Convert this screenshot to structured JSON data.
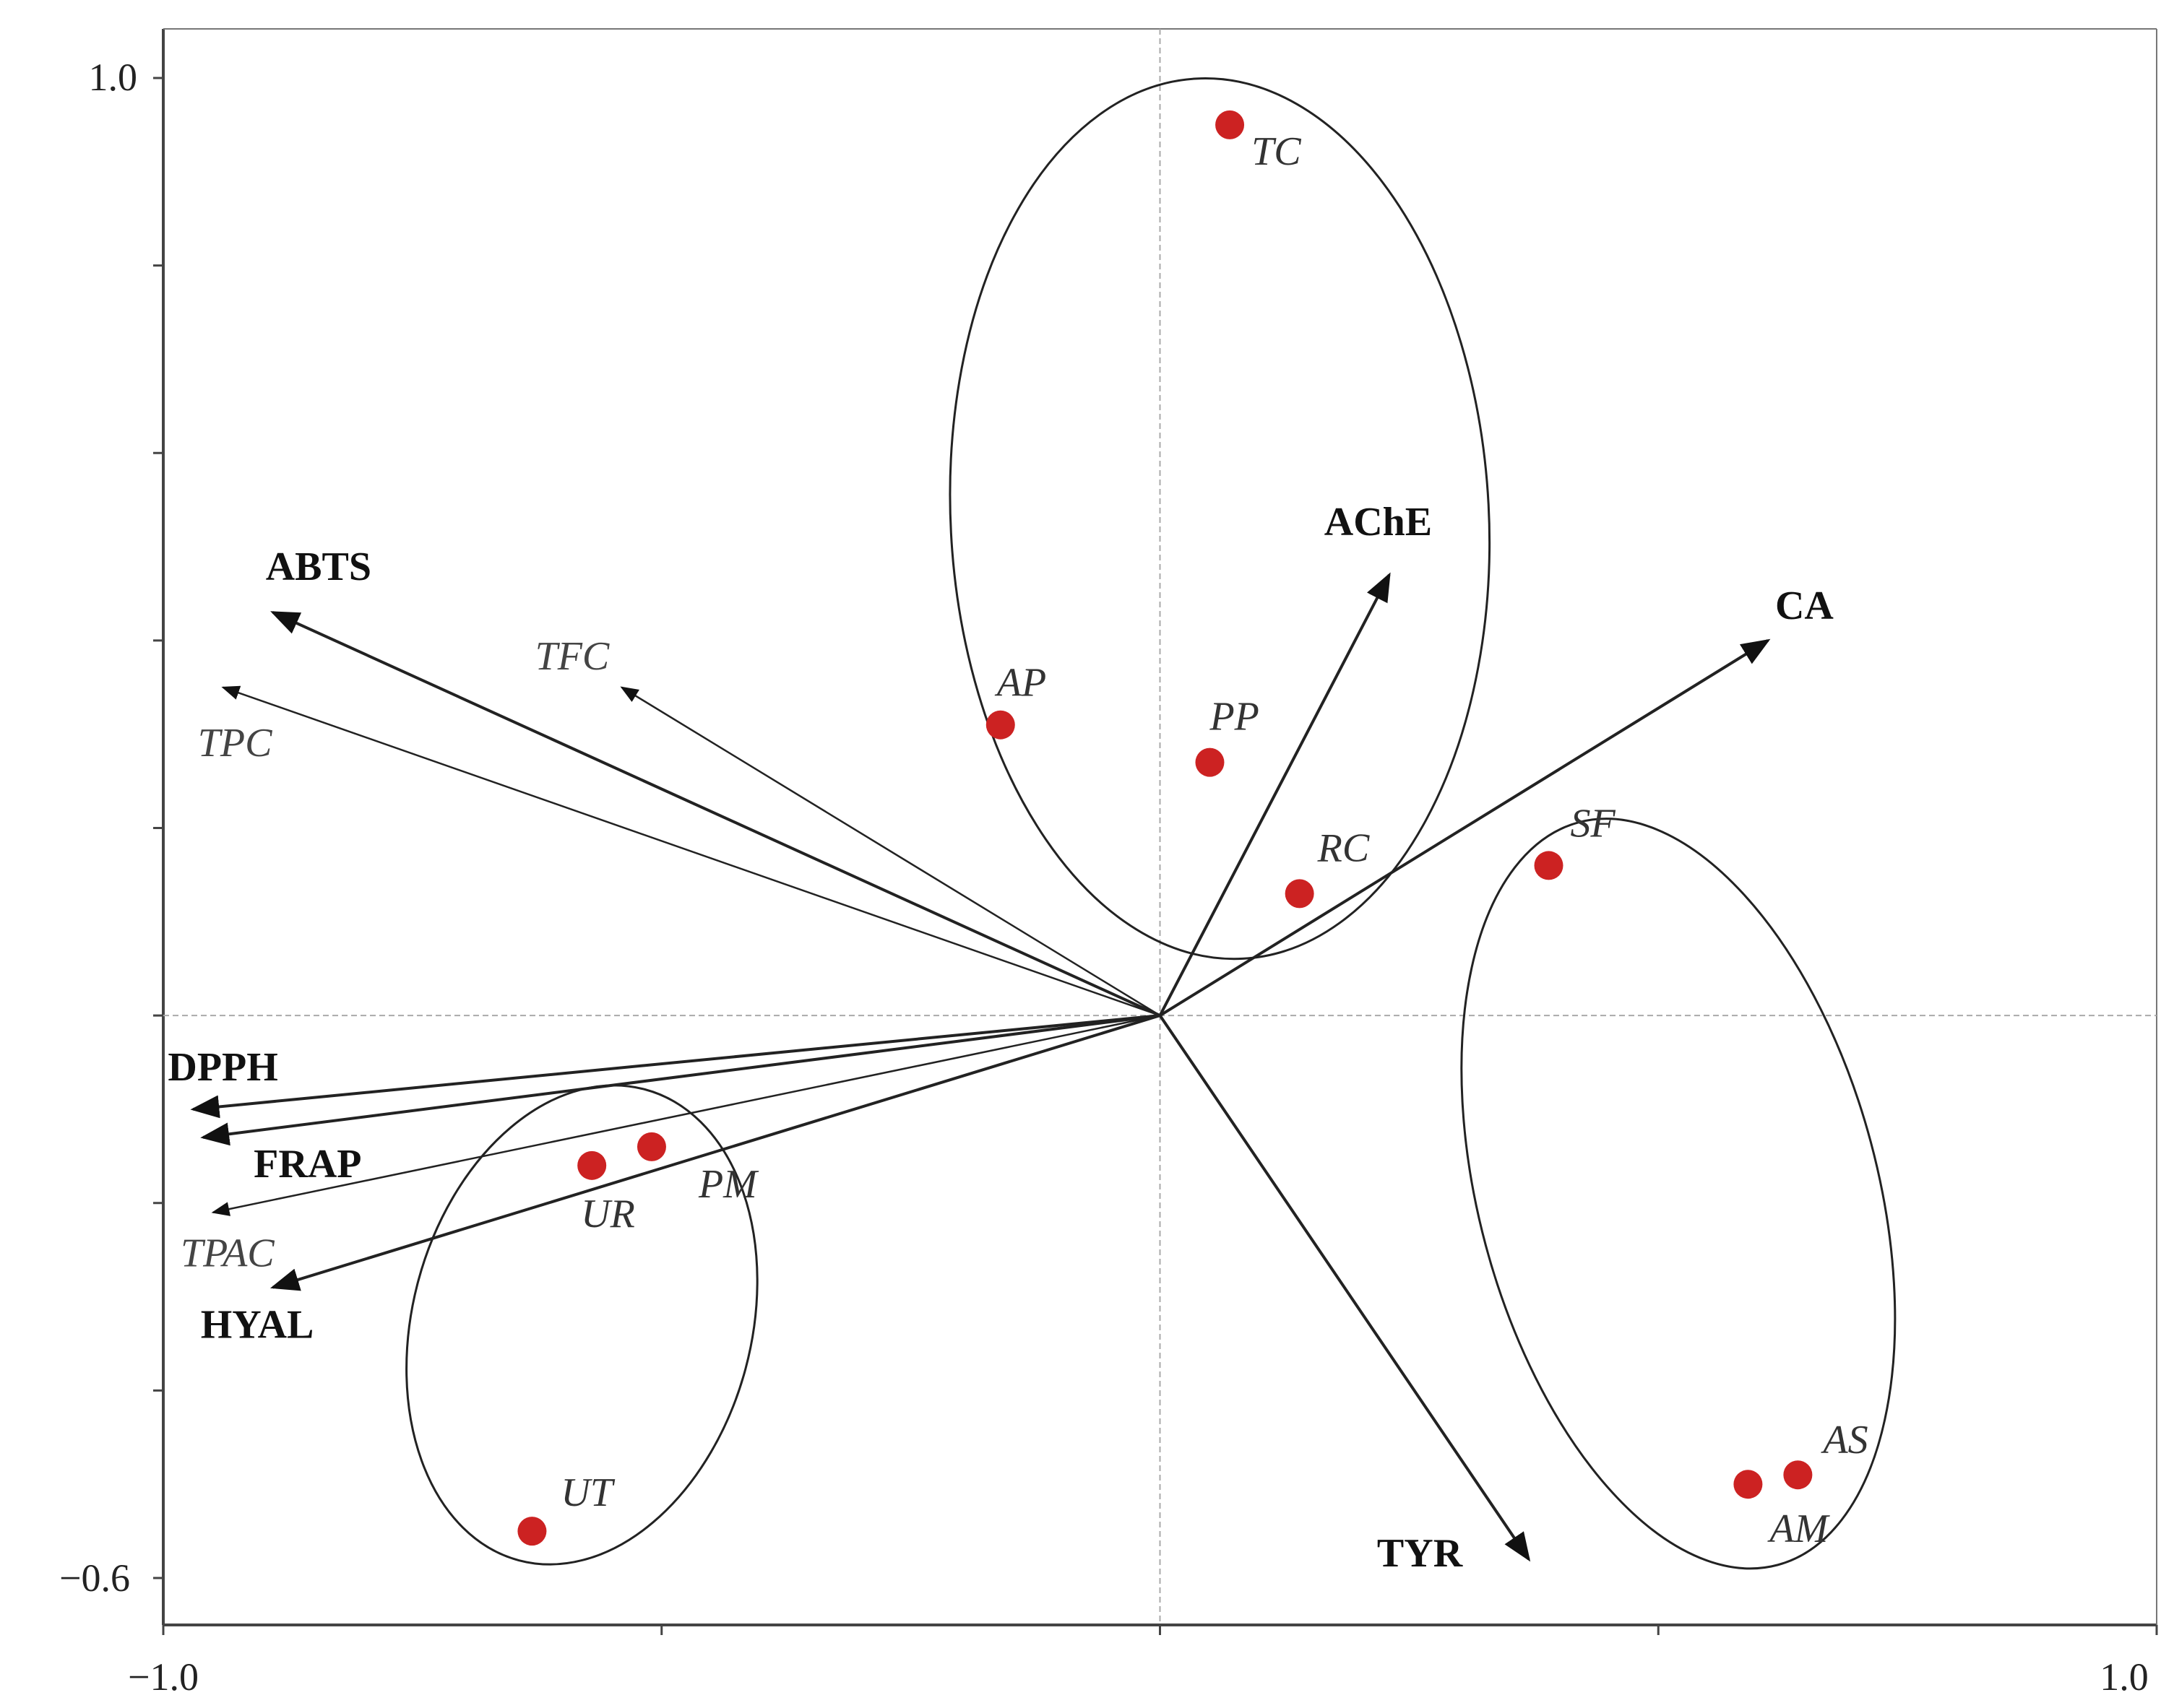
{
  "chart_data": {
    "type": "scatter",
    "title": "",
    "xlabel": "",
    "ylabel": "",
    "xlim": [
      -1.0,
      1.0
    ],
    "ylim": [
      -0.6,
      1.0
    ],
    "grid": false,
    "reference_lines": {
      "x": 0,
      "y": 0
    },
    "tick_labels": {
      "x_min": "−1.0",
      "x_max": "1.0",
      "y_min": "−0.6",
      "y_max": "1.0"
    },
    "loadings": [
      {
        "name": "ABTS",
        "x": -0.89,
        "y": 0.43,
        "style": "bold"
      },
      {
        "name": "TFC",
        "x": -0.54,
        "y": 0.35,
        "style": "italic"
      },
      {
        "name": "TPC",
        "x": -0.94,
        "y": 0.35,
        "style": "italic"
      },
      {
        "name": "AChE",
        "x": 0.23,
        "y": 0.47,
        "style": "bold"
      },
      {
        "name": "CA",
        "x": 0.61,
        "y": 0.4,
        "style": "bold"
      },
      {
        "name": "DPPH",
        "x": -0.97,
        "y": -0.1,
        "style": "bold"
      },
      {
        "name": "FRAP",
        "x": -0.96,
        "y": -0.13,
        "style": "bold"
      },
      {
        "name": "TPAC",
        "x": -0.95,
        "y": -0.21,
        "style": "italic"
      },
      {
        "name": "HYAL",
        "x": -0.89,
        "y": -0.29,
        "style": "bold"
      },
      {
        "name": "TYR",
        "x": 0.37,
        "y": -0.58,
        "style": "bold"
      }
    ],
    "scores": [
      {
        "name": "TC",
        "x": 0.07,
        "y": 0.95
      },
      {
        "name": "AP",
        "x": -0.16,
        "y": 0.31
      },
      {
        "name": "PP",
        "x": 0.05,
        "y": 0.27
      },
      {
        "name": "RC",
        "x": 0.14,
        "y": 0.13
      },
      {
        "name": "SF",
        "x": 0.39,
        "y": 0.16
      },
      {
        "name": "AS",
        "x": 0.64,
        "y": -0.49
      },
      {
        "name": "AM",
        "x": 0.59,
        "y": -0.5
      },
      {
        "name": "UR",
        "x": -0.57,
        "y": -0.16
      },
      {
        "name": "PM",
        "x": -0.51,
        "y": -0.14
      },
      {
        "name": "UT",
        "x": -0.63,
        "y": -0.55
      }
    ],
    "groups": [
      {
        "members": [
          "TC",
          "AP",
          "PP",
          "RC"
        ],
        "cx": 0.06,
        "cy": 0.53,
        "rx": 0.27,
        "ry": 0.47,
        "rotate": -3
      },
      {
        "members": [
          "SF",
          "AS",
          "AM"
        ],
        "cx": 0.52,
        "cy": -0.19,
        "rx": 0.2,
        "ry": 0.41,
        "rotate": -15
      },
      {
        "members": [
          "UR",
          "PM",
          "UT"
        ],
        "cx": -0.58,
        "cy": -0.33,
        "rx": 0.17,
        "ry": 0.26,
        "rotate": 15
      }
    ],
    "colors": {
      "points": "#cc2222",
      "lines": "#222222",
      "axes": "#999999"
    }
  }
}
